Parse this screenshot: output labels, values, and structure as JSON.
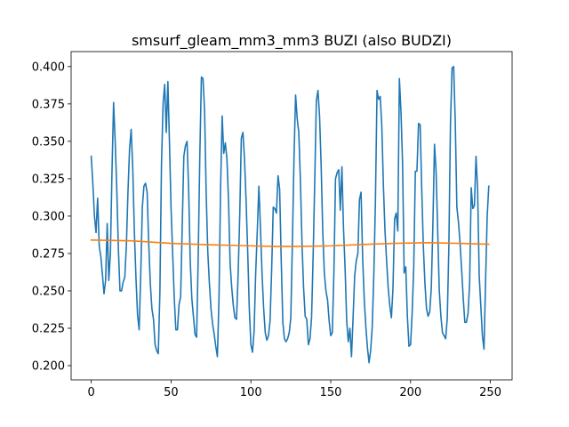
{
  "chart_data": {
    "type": "line",
    "title": "smsurf_gleam_mm3_mm3 BUZI (also BUDZI)",
    "xlabel": "",
    "ylabel": "",
    "xlim": [
      -12.6,
      263.6
    ],
    "ylim": [
      0.1905,
      0.41
    ],
    "xticks": [
      0,
      50,
      100,
      150,
      200,
      250
    ],
    "yticks": [
      0.2,
      0.225,
      0.25,
      0.275,
      0.3,
      0.325,
      0.35,
      0.375,
      0.4
    ],
    "grid": false,
    "legend": "none",
    "series": [
      {
        "color": "#1f77b4",
        "points": [
          [
            0,
            0.34
          ],
          [
            1,
            0.322
          ],
          [
            2,
            0.3
          ],
          [
            3,
            0.289
          ],
          [
            4,
            0.312
          ],
          [
            5,
            0.28
          ],
          [
            6,
            0.273
          ],
          [
            7,
            0.261
          ],
          [
            8,
            0.248
          ],
          [
            9,
            0.257
          ],
          [
            10,
            0.295
          ],
          [
            11,
            0.257
          ],
          [
            12,
            0.275
          ],
          [
            13,
            0.33
          ],
          [
            14,
            0.376
          ],
          [
            15,
            0.35
          ],
          [
            16,
            0.318
          ],
          [
            17,
            0.278
          ],
          [
            18,
            0.25
          ],
          [
            19,
            0.25
          ],
          [
            20,
            0.256
          ],
          [
            21,
            0.259
          ],
          [
            22,
            0.28
          ],
          [
            23,
            0.316
          ],
          [
            24,
            0.345
          ],
          [
            25,
            0.358
          ],
          [
            26,
            0.332
          ],
          [
            27,
            0.29
          ],
          [
            28,
            0.259
          ],
          [
            29,
            0.234
          ],
          [
            30,
            0.224
          ],
          [
            31,
            0.261
          ],
          [
            32,
            0.306
          ],
          [
            33,
            0.32
          ],
          [
            34,
            0.322
          ],
          [
            35,
            0.316
          ],
          [
            36,
            0.282
          ],
          [
            37,
            0.255
          ],
          [
            38,
            0.238
          ],
          [
            39,
            0.231
          ],
          [
            40,
            0.214
          ],
          [
            41,
            0.21
          ],
          [
            42,
            0.208
          ],
          [
            43,
            0.249
          ],
          [
            44,
            0.335
          ],
          [
            45,
            0.375
          ],
          [
            46,
            0.388
          ],
          [
            47,
            0.356
          ],
          [
            48,
            0.39
          ],
          [
            49,
            0.349
          ],
          [
            50,
            0.305
          ],
          [
            51,
            0.275
          ],
          [
            52,
            0.245
          ],
          [
            53,
            0.224
          ],
          [
            54,
            0.224
          ],
          [
            55,
            0.241
          ],
          [
            56,
            0.246
          ],
          [
            57,
            0.294
          ],
          [
            58,
            0.34
          ],
          [
            59,
            0.347
          ],
          [
            60,
            0.35
          ],
          [
            61,
            0.318
          ],
          [
            62,
            0.27
          ],
          [
            63,
            0.245
          ],
          [
            64,
            0.233
          ],
          [
            65,
            0.221
          ],
          [
            66,
            0.219
          ],
          [
            67,
            0.273
          ],
          [
            68,
            0.34
          ],
          [
            69,
            0.393
          ],
          [
            70,
            0.392
          ],
          [
            71,
            0.37
          ],
          [
            72,
            0.315
          ],
          [
            73,
            0.276
          ],
          [
            74,
            0.255
          ],
          [
            75,
            0.238
          ],
          [
            76,
            0.228
          ],
          [
            77,
            0.221
          ],
          [
            78,
            0.213
          ],
          [
            79,
            0.206
          ],
          [
            80,
            0.244
          ],
          [
            81,
            0.318
          ],
          [
            82,
            0.367
          ],
          [
            83,
            0.342
          ],
          [
            84,
            0.349
          ],
          [
            85,
            0.338
          ],
          [
            86,
            0.31
          ],
          [
            87,
            0.268
          ],
          [
            88,
            0.252
          ],
          [
            89,
            0.24
          ],
          [
            90,
            0.232
          ],
          [
            91,
            0.231
          ],
          [
            92,
            0.261
          ],
          [
            93,
            0.3
          ],
          [
            94,
            0.352
          ],
          [
            95,
            0.356
          ],
          [
            96,
            0.338
          ],
          [
            97,
            0.31
          ],
          [
            98,
            0.276
          ],
          [
            99,
            0.238
          ],
          [
            100,
            0.214
          ],
          [
            101,
            0.209
          ],
          [
            102,
            0.223
          ],
          [
            103,
            0.262
          ],
          [
            104,
            0.29
          ],
          [
            105,
            0.32
          ],
          [
            106,
            0.292
          ],
          [
            107,
            0.261
          ],
          [
            108,
            0.238
          ],
          [
            109,
            0.222
          ],
          [
            110,
            0.217
          ],
          [
            111,
            0.22
          ],
          [
            112,
            0.23
          ],
          [
            113,
            0.264
          ],
          [
            114,
            0.306
          ],
          [
            115,
            0.305
          ],
          [
            116,
            0.302
          ],
          [
            117,
            0.327
          ],
          [
            118,
            0.318
          ],
          [
            119,
            0.27
          ],
          [
            120,
            0.229
          ],
          [
            121,
            0.218
          ],
          [
            122,
            0.216
          ],
          [
            123,
            0.218
          ],
          [
            124,
            0.222
          ],
          [
            125,
            0.232
          ],
          [
            126,
            0.283
          ],
          [
            127,
            0.339
          ],
          [
            128,
            0.381
          ],
          [
            129,
            0.365
          ],
          [
            130,
            0.356
          ],
          [
            131,
            0.324
          ],
          [
            132,
            0.282
          ],
          [
            133,
            0.252
          ],
          [
            134,
            0.233
          ],
          [
            135,
            0.231
          ],
          [
            136,
            0.214
          ],
          [
            137,
            0.218
          ],
          [
            138,
            0.232
          ],
          [
            139,
            0.274
          ],
          [
            140,
            0.324
          ],
          [
            141,
            0.377
          ],
          [
            142,
            0.384
          ],
          [
            143,
            0.367
          ],
          [
            144,
            0.334
          ],
          [
            145,
            0.29
          ],
          [
            146,
            0.262
          ],
          [
            147,
            0.25
          ],
          [
            148,
            0.244
          ],
          [
            149,
            0.23
          ],
          [
            150,
            0.22
          ],
          [
            151,
            0.222
          ],
          [
            152,
            0.263
          ],
          [
            153,
            0.325
          ],
          [
            154,
            0.329
          ],
          [
            155,
            0.331
          ],
          [
            156,
            0.304
          ],
          [
            157,
            0.333
          ],
          [
            158,
            0.292
          ],
          [
            159,
            0.265
          ],
          [
            160,
            0.23
          ],
          [
            161,
            0.216
          ],
          [
            162,
            0.225
          ],
          [
            163,
            0.206
          ],
          [
            164,
            0.232
          ],
          [
            165,
            0.26
          ],
          [
            166,
            0.27
          ],
          [
            167,
            0.275
          ],
          [
            168,
            0.311
          ],
          [
            169,
            0.316
          ],
          [
            170,
            0.272
          ],
          [
            171,
            0.244
          ],
          [
            172,
            0.226
          ],
          [
            173,
            0.212
          ],
          [
            174,
            0.202
          ],
          [
            175,
            0.21
          ],
          [
            176,
            0.226
          ],
          [
            177,
            0.261
          ],
          [
            178,
            0.31
          ],
          [
            179,
            0.384
          ],
          [
            180,
            0.378
          ],
          [
            181,
            0.38
          ],
          [
            182,
            0.36
          ],
          [
            183,
            0.32
          ],
          [
            184,
            0.29
          ],
          [
            185,
            0.27
          ],
          [
            186,
            0.252
          ],
          [
            187,
            0.24
          ],
          [
            188,
            0.232
          ],
          [
            189,
            0.252
          ],
          [
            190,
            0.298
          ],
          [
            191,
            0.302
          ],
          [
            192,
            0.29
          ],
          [
            193,
            0.392
          ],
          [
            194,
            0.37
          ],
          [
            195,
            0.335
          ],
          [
            196,
            0.262
          ],
          [
            197,
            0.266
          ],
          [
            198,
            0.233
          ],
          [
            199,
            0.213
          ],
          [
            200,
            0.214
          ],
          [
            201,
            0.235
          ],
          [
            202,
            0.266
          ],
          [
            203,
            0.33
          ],
          [
            204,
            0.33
          ],
          [
            205,
            0.362
          ],
          [
            206,
            0.361
          ],
          [
            207,
            0.318
          ],
          [
            208,
            0.28
          ],
          [
            209,
            0.255
          ],
          [
            210,
            0.238
          ],
          [
            211,
            0.233
          ],
          [
            212,
            0.236
          ],
          [
            213,
            0.252
          ],
          [
            214,
            0.295
          ],
          [
            215,
            0.348
          ],
          [
            216,
            0.33
          ],
          [
            217,
            0.29
          ],
          [
            218,
            0.25
          ],
          [
            219,
            0.233
          ],
          [
            220,
            0.222
          ],
          [
            221,
            0.22
          ],
          [
            222,
            0.218
          ],
          [
            223,
            0.232
          ],
          [
            224,
            0.28
          ],
          [
            225,
            0.362
          ],
          [
            226,
            0.399
          ],
          [
            227,
            0.4
          ],
          [
            228,
            0.363
          ],
          [
            229,
            0.306
          ],
          [
            230,
            0.296
          ],
          [
            231,
            0.282
          ],
          [
            232,
            0.264
          ],
          [
            233,
            0.245
          ],
          [
            234,
            0.229
          ],
          [
            235,
            0.229
          ],
          [
            236,
            0.235
          ],
          [
            237,
            0.255
          ],
          [
            238,
            0.319
          ],
          [
            239,
            0.305
          ],
          [
            240,
            0.307
          ],
          [
            241,
            0.34
          ],
          [
            242,
            0.318
          ],
          [
            243,
            0.26
          ],
          [
            244,
            0.24
          ],
          [
            245,
            0.22
          ],
          [
            246,
            0.211
          ],
          [
            247,
            0.257
          ],
          [
            248,
            0.3
          ],
          [
            249,
            0.32
          ]
        ]
      },
      {
        "color": "#ff7f0e",
        "points": [
          [
            0,
            0.284
          ],
          [
            25,
            0.2835
          ],
          [
            50,
            0.2818
          ],
          [
            75,
            0.2808
          ],
          [
            100,
            0.2801
          ],
          [
            115,
            0.2797
          ],
          [
            130,
            0.2797
          ],
          [
            150,
            0.2801
          ],
          [
            170,
            0.281
          ],
          [
            190,
            0.2818
          ],
          [
            210,
            0.2822
          ],
          [
            230,
            0.2818
          ],
          [
            249,
            0.2812
          ]
        ]
      }
    ]
  }
}
